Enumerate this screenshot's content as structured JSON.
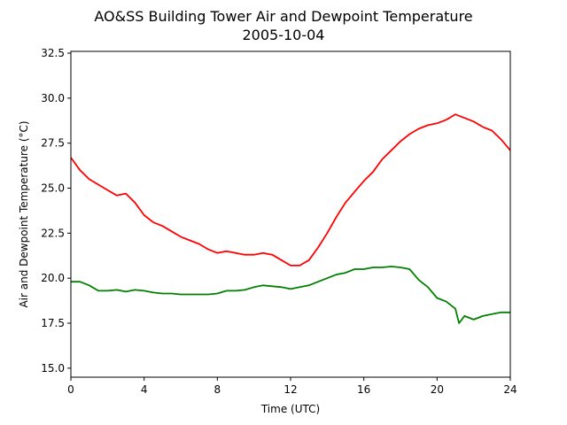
{
  "chart_data": {
    "type": "line",
    "title": "AO&SS Building Tower Air and Dewpoint Temperature",
    "subtitle": "2005-10-04",
    "xlabel": "Time (UTC)",
    "ylabel": "Air and Dewpoint Temperature (°C)",
    "xlim": [
      0,
      24
    ],
    "ylim": [
      14.5,
      32.6
    ],
    "xticks": [
      0,
      4,
      8,
      12,
      16,
      20,
      24
    ],
    "xtick_labels": [
      "0",
      "4",
      "8",
      "12",
      "16",
      "20",
      "24"
    ],
    "yticks": [
      15.0,
      17.5,
      20.0,
      22.5,
      25.0,
      27.5,
      30.0,
      32.5
    ],
    "ytick_labels": [
      "15.0",
      "17.5",
      "20.0",
      "22.5",
      "25.0",
      "27.5",
      "30.0",
      "32.5"
    ],
    "grid": false,
    "series": [
      {
        "color": "#ff0000",
        "x": [
          0,
          0.5,
          1,
          1.5,
          2,
          2.5,
          3,
          3.5,
          4,
          4.5,
          5,
          5.5,
          6,
          6.5,
          7,
          7.5,
          8,
          8.5,
          9,
          9.5,
          10,
          10.5,
          11,
          11.5,
          12,
          12.5,
          13,
          13.5,
          14,
          14.5,
          15,
          15.5,
          16,
          16.5,
          17,
          17.5,
          18,
          18.5,
          19,
          19.5,
          20,
          20.5,
          21,
          21.5,
          22,
          22.5,
          23,
          23.5,
          24
        ],
        "values": [
          26.7,
          26.0,
          25.5,
          25.2,
          24.9,
          24.6,
          24.7,
          24.2,
          23.5,
          23.1,
          22.9,
          22.6,
          22.3,
          22.1,
          21.9,
          21.6,
          21.4,
          21.5,
          21.4,
          21.3,
          21.3,
          21.4,
          21.3,
          21.0,
          20.7,
          20.7,
          21.0,
          21.7,
          22.5,
          23.4,
          24.2,
          24.8,
          25.4,
          25.9,
          26.6,
          27.1,
          27.6,
          28.0,
          28.3,
          28.5,
          28.6,
          28.8,
          29.1,
          28.9,
          28.7,
          28.4,
          28.2,
          27.7,
          27.1
        ]
      },
      {
        "color": "#008000",
        "x": [
          0,
          0.5,
          1,
          1.5,
          2,
          2.5,
          3,
          3.5,
          4,
          4.5,
          5,
          5.5,
          6,
          6.5,
          7,
          7.5,
          8,
          8.5,
          9,
          9.5,
          10,
          10.5,
          11,
          11.5,
          12,
          12.5,
          13,
          13.5,
          14,
          14.5,
          15,
          15.5,
          16,
          16.5,
          17,
          17.5,
          18,
          18.5,
          19,
          19.5,
          20,
          20.5,
          21,
          21.2,
          21.5,
          22,
          22.5,
          23,
          23.5,
          24
        ],
        "values": [
          19.8,
          19.8,
          19.6,
          19.3,
          19.3,
          19.35,
          19.25,
          19.35,
          19.3,
          19.2,
          19.15,
          19.15,
          19.1,
          19.1,
          19.1,
          19.1,
          19.15,
          19.3,
          19.3,
          19.35,
          19.5,
          19.6,
          19.55,
          19.5,
          19.4,
          19.5,
          19.6,
          19.8,
          20.0,
          20.2,
          20.3,
          20.5,
          20.5,
          20.6,
          20.6,
          20.65,
          20.6,
          20.5,
          19.9,
          19.5,
          18.9,
          18.7,
          18.3,
          17.5,
          17.9,
          17.7,
          17.9,
          18.0,
          18.1,
          18.1
        ]
      }
    ]
  }
}
